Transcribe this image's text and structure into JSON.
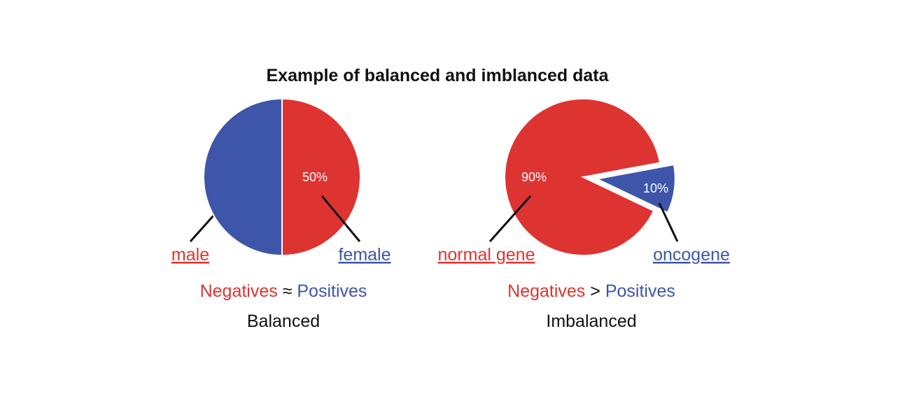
{
  "title": "Example of balanced and imblanced data",
  "colors": {
    "negative": "#dd3431",
    "positive": "#3d56aa",
    "text": "#111111"
  },
  "chart_data": [
    {
      "type": "pie",
      "slices": [
        {
          "label": "male",
          "value": 50,
          "display": "50%",
          "role": "negative"
        },
        {
          "label": "female",
          "value": 50,
          "display": "50%",
          "role": "positive"
        }
      ],
      "summary": {
        "negatives": "Negatives",
        "operator": "≈",
        "positives": "Positives"
      },
      "caption": "Balanced"
    },
    {
      "type": "pie",
      "slices": [
        {
          "label": "normal gene",
          "value": 90,
          "display": "90%",
          "role": "negative"
        },
        {
          "label": "oncogene",
          "value": 10,
          "display": "10%",
          "role": "positive",
          "exploded": true
        }
      ],
      "summary": {
        "negatives": "Negatives",
        "operator": ">",
        "positives": "Positives"
      },
      "caption": "Imbalanced"
    }
  ]
}
